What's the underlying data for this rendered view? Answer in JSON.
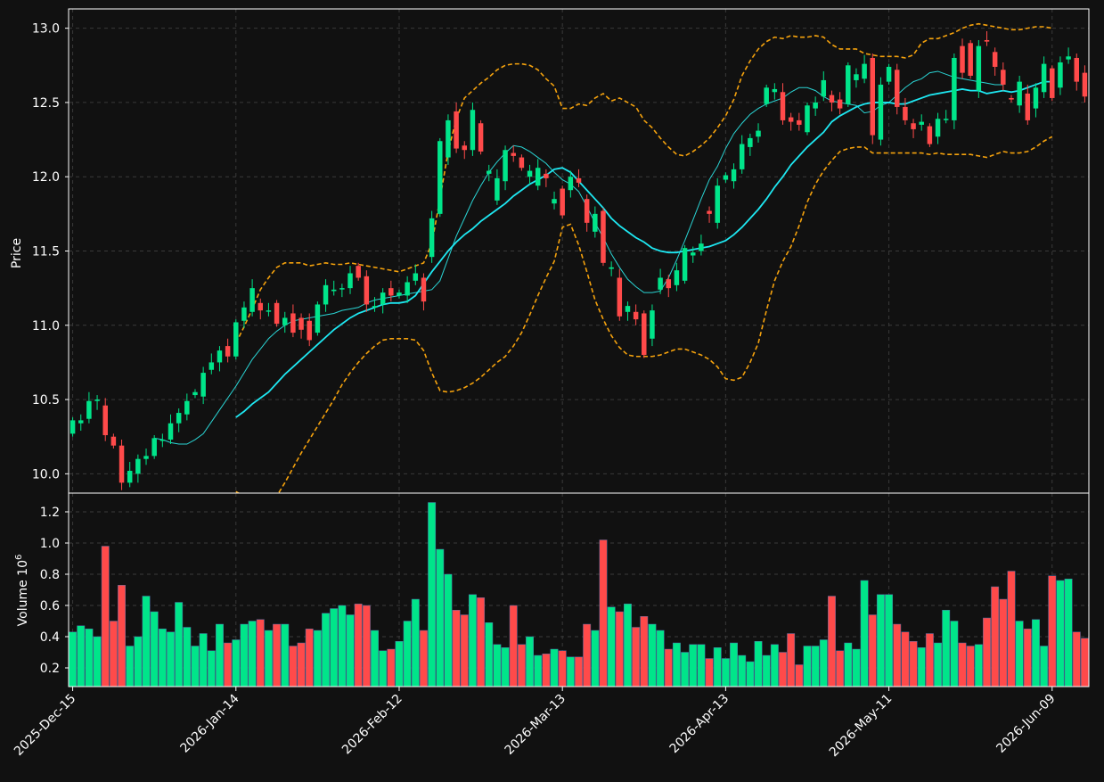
{
  "chart_data": [
    {
      "type": "candlestick",
      "panel": "price",
      "ylabel": "Price",
      "ylim": [
        9.87,
        13.13
      ],
      "yticks": [
        10.0,
        10.5,
        11.0,
        11.5,
        12.0,
        12.5,
        13.0
      ],
      "xlim": [
        -0.5,
        124.5
      ],
      "xtick_labels": [
        "2025-Dec-15",
        "2026-Jan-14",
        "2026-Feb-12",
        "2026-Mar-13",
        "2026-Apr-13",
        "2026-May-11",
        "2026-Jun-09"
      ],
      "xtick_index": [
        0,
        20,
        40,
        60,
        80,
        100,
        120
      ],
      "grid": true,
      "colors": {
        "up": "#00e58a",
        "down": "#ff4a4a",
        "ma_fast": "#2ad4d4",
        "ma_slow": "#1ee8f2",
        "bollinger": "#f5a20d",
        "background": "#111111",
        "grid": "#3a3a3a"
      },
      "candles": [
        [
          10.27,
          10.36
        ],
        [
          10.34,
          10.36
        ],
        [
          10.37,
          10.49
        ],
        [
          10.49,
          10.5
        ],
        [
          10.46,
          10.26
        ],
        [
          10.25,
          10.19
        ],
        [
          10.19,
          9.94
        ],
        [
          9.94,
          10.02
        ],
        [
          10.0,
          10.1
        ],
        [
          10.1,
          10.12
        ],
        [
          10.12,
          10.24
        ],
        [
          10.23,
          10.23
        ],
        [
          10.23,
          10.34
        ],
        [
          10.34,
          10.41
        ],
        [
          10.4,
          10.49
        ],
        [
          10.53,
          10.55
        ],
        [
          10.52,
          10.68
        ],
        [
          10.7,
          10.75
        ],
        [
          10.75,
          10.83
        ],
        [
          10.86,
          10.79
        ],
        [
          10.79,
          11.02
        ],
        [
          11.03,
          11.12
        ],
        [
          11.09,
          11.25
        ],
        [
          11.15,
          11.1
        ],
        [
          11.1,
          11.1
        ],
        [
          11.15,
          11.01
        ],
        [
          11.0,
          11.05
        ],
        [
          11.08,
          10.95
        ],
        [
          11.05,
          10.97
        ],
        [
          11.03,
          10.9
        ],
        [
          10.95,
          11.14
        ],
        [
          11.14,
          11.27
        ],
        [
          11.23,
          11.24
        ],
        [
          11.25,
          11.25
        ],
        [
          11.25,
          11.35
        ],
        [
          11.4,
          11.32
        ],
        [
          11.33,
          11.14
        ],
        [
          11.12,
          11.13
        ],
        [
          11.14,
          11.22
        ],
        [
          11.25,
          11.2
        ],
        [
          11.2,
          11.22
        ],
        [
          11.2,
          11.29
        ],
        [
          11.3,
          11.35
        ],
        [
          11.32,
          11.16
        ],
        [
          11.46,
          11.72
        ],
        [
          11.75,
          12.24
        ],
        [
          12.13,
          12.38
        ],
        [
          12.44,
          12.19
        ],
        [
          12.21,
          12.18
        ],
        [
          12.18,
          12.45
        ],
        [
          12.36,
          12.17
        ],
        [
          12.02,
          12.04
        ],
        [
          11.84,
          11.99
        ],
        [
          11.97,
          12.18
        ],
        [
          12.16,
          12.14
        ],
        [
          12.13,
          12.06
        ],
        [
          12.0,
          12.04
        ],
        [
          11.94,
          12.06
        ],
        [
          12.02,
          11.99
        ],
        [
          11.82,
          11.85
        ],
        [
          11.92,
          11.74
        ],
        [
          11.91,
          12.0
        ],
        [
          11.99,
          11.96
        ],
        [
          11.85,
          11.69
        ],
        [
          11.63,
          11.75
        ],
        [
          11.77,
          11.42
        ],
        [
          11.38,
          11.39
        ],
        [
          11.32,
          11.06
        ],
        [
          11.09,
          11.13
        ],
        [
          11.09,
          11.04
        ],
        [
          11.08,
          10.8
        ],
        [
          10.91,
          11.1
        ],
        [
          11.24,
          11.32
        ],
        [
          11.31,
          11.25
        ],
        [
          11.27,
          11.37
        ],
        [
          11.3,
          11.52
        ],
        [
          11.47,
          11.49
        ],
        [
          11.5,
          11.55
        ],
        [
          11.77,
          11.75
        ],
        [
          11.69,
          11.94
        ],
        [
          11.98,
          12.01
        ],
        [
          11.97,
          12.05
        ],
        [
          12.05,
          12.22
        ],
        [
          12.2,
          12.26
        ],
        [
          12.27,
          12.31
        ],
        [
          12.49,
          12.6
        ],
        [
          12.57,
          12.59
        ],
        [
          12.57,
          12.38
        ],
        [
          12.4,
          12.37
        ],
        [
          12.38,
          12.35
        ],
        [
          12.3,
          12.48
        ],
        [
          12.46,
          12.5
        ],
        [
          12.54,
          12.65
        ],
        [
          12.55,
          12.5
        ],
        [
          12.52,
          12.46
        ],
        [
          12.49,
          12.75
        ],
        [
          12.65,
          12.69
        ],
        [
          12.66,
          12.76
        ],
        [
          12.8,
          12.28
        ],
        [
          12.25,
          12.62
        ],
        [
          12.64,
          12.74
        ],
        [
          12.72,
          12.47
        ],
        [
          12.47,
          12.38
        ],
        [
          12.36,
          12.32
        ],
        [
          12.35,
          12.37
        ],
        [
          12.34,
          12.22
        ],
        [
          12.27,
          12.39
        ],
        [
          12.39,
          12.39
        ],
        [
          12.38,
          12.8
        ],
        [
          12.88,
          12.7
        ],
        [
          12.9,
          12.68
        ],
        [
          12.58,
          12.88
        ],
        [
          12.92,
          12.91
        ],
        [
          12.84,
          12.74
        ],
        [
          12.72,
          12.62
        ],
        [
          12.53,
          12.52
        ],
        [
          12.48,
          12.64
        ],
        [
          12.56,
          12.38
        ],
        [
          12.46,
          12.6
        ],
        [
          12.57,
          12.76
        ],
        [
          12.73,
          12.53
        ],
        [
          12.6,
          12.77
        ],
        [
          12.79,
          12.81
        ],
        [
          12.8,
          12.64
        ],
        [
          12.7,
          12.54
        ]
      ],
      "ma_fast": {
        "start": 10,
        "values": [
          10.24,
          10.23,
          10.21,
          10.2,
          10.2,
          10.23,
          10.27,
          10.35,
          10.43,
          10.51,
          10.59,
          10.68,
          10.77,
          10.84,
          10.91,
          10.96,
          11.0,
          11.03,
          11.04,
          11.05,
          11.06,
          11.07,
          11.08,
          11.1,
          11.11,
          11.12,
          11.15,
          11.17,
          11.18,
          11.19,
          11.2,
          11.21,
          11.22,
          11.23,
          11.24,
          11.3,
          11.45,
          11.6,
          11.72,
          11.84,
          11.94,
          12.03,
          12.1,
          12.16,
          12.21,
          12.2,
          12.17,
          12.13,
          12.09,
          12.03,
          11.98,
          11.95,
          11.9,
          11.8,
          11.69,
          11.59,
          11.48,
          11.39,
          11.31,
          11.26,
          11.22,
          11.22,
          11.23,
          11.32,
          11.44,
          11.57,
          11.71,
          11.85,
          11.98,
          12.07,
          12.19,
          12.29,
          12.36,
          12.42,
          12.46,
          12.49,
          12.51,
          12.53,
          12.57,
          12.6,
          12.6,
          12.58,
          12.54,
          12.51,
          12.5,
          12.49,
          12.48,
          12.43,
          12.44,
          12.48,
          12.5,
          12.55,
          12.6,
          12.64,
          12.66,
          12.7,
          12.71,
          12.69,
          12.67,
          12.66,
          12.65,
          12.64,
          12.63,
          12.62,
          12.62
        ]
      },
      "ma_slow": {
        "start": 20,
        "values": [
          10.38,
          10.42,
          10.47,
          10.51,
          10.55,
          10.61,
          10.67,
          10.72,
          10.77,
          10.82,
          10.87,
          10.92,
          10.97,
          11.01,
          11.05,
          11.08,
          11.1,
          11.12,
          11.14,
          11.15,
          11.15,
          11.16,
          11.2,
          11.28,
          11.36,
          11.43,
          11.5,
          11.56,
          11.61,
          11.65,
          11.7,
          11.74,
          11.78,
          11.82,
          11.87,
          11.91,
          11.95,
          11.98,
          12.01,
          12.05,
          12.06,
          12.03,
          11.97,
          11.91,
          11.85,
          11.79,
          11.72,
          11.67,
          11.63,
          11.59,
          11.56,
          11.52,
          11.5,
          11.49,
          11.49,
          11.5,
          11.51,
          11.52,
          11.53,
          11.55,
          11.57,
          11.61,
          11.66,
          11.72,
          11.78,
          11.85,
          11.93,
          12.0,
          12.08,
          12.14,
          12.2,
          12.25,
          12.3,
          12.37,
          12.41,
          12.44,
          12.47,
          12.49,
          12.5,
          12.5,
          12.5,
          12.49,
          12.49,
          12.51,
          12.53,
          12.55,
          12.56,
          12.57,
          12.58,
          12.59,
          12.58,
          12.58,
          12.56,
          12.57,
          12.58,
          12.57,
          12.58,
          12.6,
          12.62,
          12.64,
          12.64
        ]
      },
      "bb_upper": {
        "start": 20,
        "values": [
          10.88,
          10.99,
          11.11,
          11.24,
          11.32,
          11.39,
          11.42,
          11.42,
          11.42,
          11.4,
          11.41,
          11.42,
          11.41,
          11.41,
          11.42,
          11.41,
          11.4,
          11.39,
          11.38,
          11.37,
          11.36,
          11.38,
          11.4,
          11.42,
          11.55,
          11.85,
          12.17,
          12.39,
          12.53,
          12.58,
          12.63,
          12.67,
          12.72,
          12.75,
          12.76,
          12.76,
          12.75,
          12.72,
          12.66,
          12.61,
          12.46,
          12.46,
          12.49,
          12.48,
          12.53,
          12.56,
          12.51,
          12.53,
          12.5,
          12.47,
          12.38,
          12.33,
          12.26,
          12.2,
          12.15,
          12.14,
          12.17,
          12.21,
          12.26,
          12.33,
          12.41,
          12.52,
          12.68,
          12.78,
          12.86,
          12.91,
          12.94,
          12.93,
          12.95,
          12.94,
          12.94,
          12.95,
          12.94,
          12.89,
          12.86,
          12.86,
          12.86,
          12.83,
          12.82,
          12.81,
          12.81,
          12.81,
          12.8,
          12.82,
          12.9,
          12.93,
          12.93,
          12.95,
          12.97,
          13.0,
          13.02,
          13.03,
          13.02,
          13.01,
          13.0,
          12.99,
          12.99,
          13.0,
          13.01,
          13.01,
          13.0
        ]
      },
      "bb_lower": {
        "start": 20,
        "values": [
          9.88,
          9.85,
          9.83,
          9.8,
          9.81,
          9.85,
          9.94,
          10.04,
          10.14,
          10.23,
          10.32,
          10.41,
          10.5,
          10.6,
          10.68,
          10.75,
          10.81,
          10.86,
          10.9,
          10.91,
          10.91,
          10.91,
          10.9,
          10.83,
          10.68,
          10.56,
          10.55,
          10.56,
          10.58,
          10.61,
          10.65,
          10.7,
          10.75,
          10.79,
          10.86,
          10.95,
          11.07,
          11.2,
          11.32,
          11.43,
          11.66,
          11.68,
          11.54,
          11.36,
          11.17,
          11.04,
          10.93,
          10.85,
          10.8,
          10.79,
          10.79,
          10.79,
          10.8,
          10.82,
          10.84,
          10.84,
          10.82,
          10.8,
          10.77,
          10.72,
          10.64,
          10.63,
          10.65,
          10.75,
          10.88,
          11.1,
          11.3,
          11.43,
          11.53,
          11.67,
          11.83,
          11.95,
          12.04,
          12.11,
          12.17,
          12.19,
          12.2,
          12.2,
          12.16,
          12.16,
          12.16,
          12.16,
          12.16,
          12.16,
          12.16,
          12.15,
          12.16,
          12.15,
          12.15,
          12.15,
          12.15,
          12.14,
          12.13,
          12.15,
          12.17,
          12.16,
          12.16,
          12.17,
          12.2,
          12.24,
          12.27
        ]
      }
    },
    {
      "type": "bar",
      "panel": "volume",
      "ylabel": "Volume  10",
      "ylabel_exponent": "6",
      "ylim": [
        0.08,
        1.32
      ],
      "yticks": [
        0.2,
        0.4,
        0.6,
        0.8,
        1.0,
        1.2
      ],
      "xlim": [
        -0.5,
        124.5
      ],
      "grid": true,
      "values": [
        0.43,
        0.47,
        0.45,
        0.4,
        0.98,
        0.5,
        0.73,
        0.34,
        0.4,
        0.66,
        0.56,
        0.45,
        0.43,
        0.62,
        0.46,
        0.34,
        0.42,
        0.31,
        0.48,
        0.36,
        0.38,
        0.48,
        0.5,
        0.51,
        0.44,
        0.48,
        0.48,
        0.34,
        0.36,
        0.45,
        0.44,
        0.55,
        0.58,
        0.6,
        0.54,
        0.61,
        0.6,
        0.44,
        0.31,
        0.32,
        0.37,
        0.5,
        0.64,
        0.44,
        1.26,
        0.96,
        0.8,
        0.57,
        0.54,
        0.67,
        0.65,
        0.49,
        0.35,
        0.33,
        0.6,
        0.35,
        0.4,
        0.28,
        0.29,
        0.32,
        0.31,
        0.27,
        0.27,
        0.48,
        0.44,
        1.02,
        0.59,
        0.56,
        0.61,
        0.46,
        0.53,
        0.48,
        0.44,
        0.32,
        0.36,
        0.3,
        0.35,
        0.35,
        0.26,
        0.33,
        0.26,
        0.36,
        0.28,
        0.24,
        0.37,
        0.28,
        0.35,
        0.3,
        0.42,
        0.22,
        0.34,
        0.34,
        0.38,
        0.66,
        0.31,
        0.36,
        0.32,
        0.76,
        0.54,
        0.67,
        0.67,
        0.48,
        0.43,
        0.37,
        0.33,
        0.42,
        0.36,
        0.57,
        0.5,
        0.36,
        0.34,
        0.35,
        0.52,
        0.72,
        0.64,
        0.82,
        0.5,
        0.45,
        0.51,
        0.34,
        0.79,
        0.76,
        0.77,
        0.43,
        0.39
      ]
    }
  ]
}
